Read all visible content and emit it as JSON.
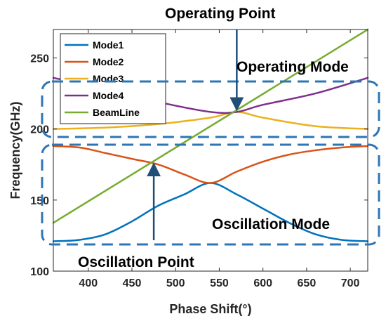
{
  "chart_data": {
    "type": "line",
    "xlabel": "Phase Shift(°)",
    "ylabel": "Frequency(GHz)",
    "xlim": [
      360,
      720
    ],
    "ylim": [
      100,
      270
    ],
    "xticks": [
      400,
      450,
      500,
      550,
      600,
      650,
      700
    ],
    "yticks": [
      100,
      150,
      200,
      250
    ],
    "grid": false,
    "legend_position": "top-left",
    "series": [
      {
        "name": "Mode1",
        "color": "#0072BD",
        "x": [
          360,
          390,
          420,
          450,
          480,
          510,
          540,
          570,
          600,
          630,
          660,
          690,
          720
        ],
        "y": [
          121,
          122,
          126,
          135,
          146,
          154,
          162,
          154,
          144,
          134,
          126,
          122,
          121
        ]
      },
      {
        "name": "Mode2",
        "color": "#D95319",
        "x": [
          360,
          390,
          420,
          450,
          480,
          510,
          540,
          570,
          600,
          630,
          660,
          690,
          720
        ],
        "y": [
          188,
          187,
          183,
          179,
          175,
          168,
          162,
          170,
          177,
          182,
          185,
          187,
          188
        ]
      },
      {
        "name": "Mode3",
        "color": "#EDB120",
        "x": [
          360,
          420,
          480,
          540,
          570,
          600,
          660,
          720
        ],
        "y": [
          200,
          201,
          203.5,
          208,
          212,
          208,
          202,
          200
        ]
      },
      {
        "name": "Mode4",
        "color": "#7E2F8E",
        "x": [
          360,
          420,
          480,
          540,
          570,
          600,
          660,
          720
        ],
        "y": [
          236,
          228,
          219,
          212,
          212,
          217,
          225,
          236
        ]
      },
      {
        "name": "BeamLine",
        "color": "#77AC30",
        "x": [
          360,
          720
        ],
        "y": [
          134,
          270
        ]
      }
    ],
    "annotations": [
      {
        "text": "Operating Point",
        "arrow_to": [
          570,
          212
        ]
      },
      {
        "text": "Operating Mode"
      },
      {
        "text": "Oscillation Mode"
      },
      {
        "text": "Oscillation Point",
        "arrow_to": [
          475,
          177
        ]
      }
    ]
  }
}
